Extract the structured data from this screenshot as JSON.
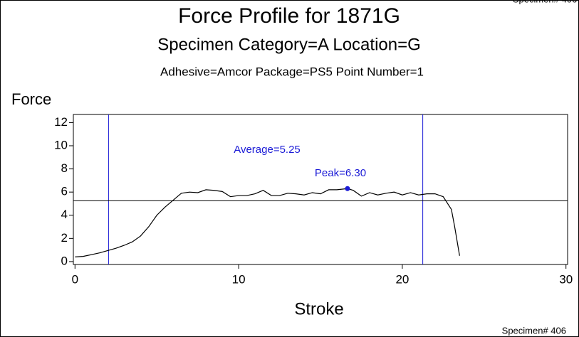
{
  "chart_data": {
    "type": "line",
    "title": "Force Profile for 1871G",
    "subtitle": "Specimen Category=A   Location=G",
    "subtitle2": "Adhesive=Amcor    Package=PS5    Point Number=1",
    "ylabel": "Force",
    "xlabel": "Stroke",
    "footer": "Specimen# 406",
    "x": [
      0,
      0.5,
      1,
      1.5,
      2,
      2.5,
      3,
      3.5,
      4,
      4.5,
      5,
      5.5,
      6,
      6.5,
      7,
      7.5,
      8,
      8.5,
      9,
      9.5,
      10,
      10.5,
      11,
      11.5,
      12,
      12.5,
      13,
      13.5,
      14,
      14.5,
      15,
      15.5,
      16,
      16.65,
      17,
      17.5,
      18,
      18.5,
      19,
      19.5,
      20,
      20.5,
      21,
      21.5,
      22,
      22.5,
      23,
      23.2,
      23.5
    ],
    "series": [
      {
        "color": "#000000",
        "values": [
          0.4,
          0.45,
          0.6,
          0.75,
          0.95,
          1.15,
          1.4,
          1.7,
          2.2,
          3.0,
          4.0,
          4.7,
          5.3,
          5.9,
          6.0,
          5.95,
          6.2,
          6.15,
          6.05,
          5.6,
          5.7,
          5.7,
          5.85,
          6.15,
          5.7,
          5.7,
          5.9,
          5.85,
          5.75,
          5.95,
          5.85,
          6.2,
          6.2,
          6.3,
          6.15,
          5.65,
          5.95,
          5.75,
          5.9,
          6.0,
          5.75,
          5.95,
          5.75,
          5.85,
          5.85,
          5.6,
          4.5,
          3.0,
          0.5
        ]
      }
    ],
    "xlim": [
      -0.1,
      30.1
    ],
    "ylim": [
      -0.25,
      12.7
    ],
    "xticks": [
      0,
      10,
      20,
      30
    ],
    "yticks": [
      0,
      2,
      4,
      6,
      8,
      10,
      12
    ],
    "vlines": [
      2.05,
      21.25
    ],
    "average": 5.25,
    "peak": {
      "x": 16.65,
      "y": 6.3
    },
    "annotation_color": "#1a1ad6",
    "annotations": [
      "Average=5.25",
      "Peak=6.30"
    ]
  }
}
